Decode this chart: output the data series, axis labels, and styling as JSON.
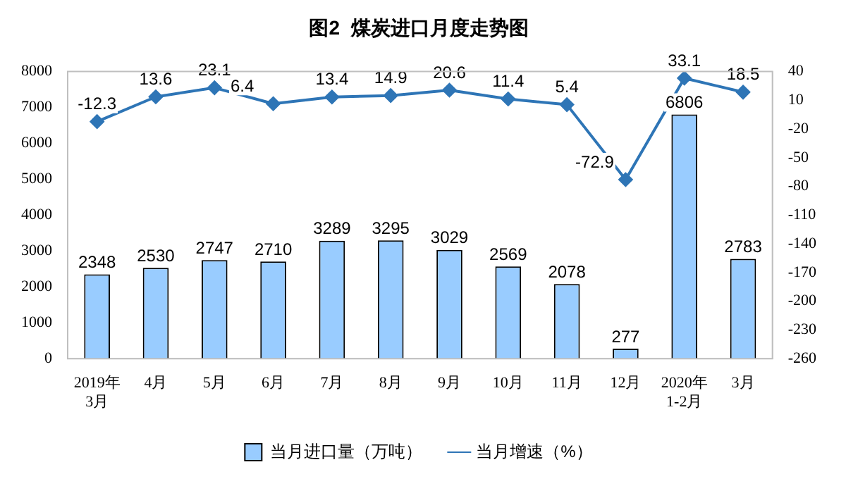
{
  "chart_data": {
    "type": "bar",
    "title": "图2  煤炭进口月度走势图",
    "categories": [
      "2019年\n3月",
      "4月",
      "5月",
      "6月",
      "7月",
      "8月",
      "9月",
      "10月",
      "11月",
      "12月",
      "2020年\n1-2月",
      "3月"
    ],
    "series": [
      {
        "name": "当月进口量（万吨）",
        "color": "#99ccff",
        "values": [
          2348,
          2530,
          2747,
          2710,
          3289,
          3295,
          3029,
          2569,
          2078,
          277,
          6806,
          2783
        ]
      },
      {
        "name": "当月增速（%）",
        "type": "line",
        "axis": "y2",
        "color": "#2e75b6",
        "values": [
          -12.3,
          13.6,
          23.1,
          6.4,
          13.4,
          14.9,
          20.6,
          11.4,
          5.4,
          -72.9,
          33.1,
          18.5
        ]
      }
    ],
    "ylim": [
      0,
      8000
    ],
    "yticks": [
      0,
      1000,
      2000,
      3000,
      4000,
      5000,
      6000,
      7000,
      8000
    ],
    "y2lim": [
      -260,
      40
    ],
    "y2ticks": [
      -260,
      -230,
      -200,
      -170,
      -140,
      -110,
      -80,
      -50,
      -20,
      10,
      40
    ],
    "data_labels": true,
    "legend": "bottom",
    "grid": false,
    "marker": "diamond",
    "line_style": "solid"
  }
}
